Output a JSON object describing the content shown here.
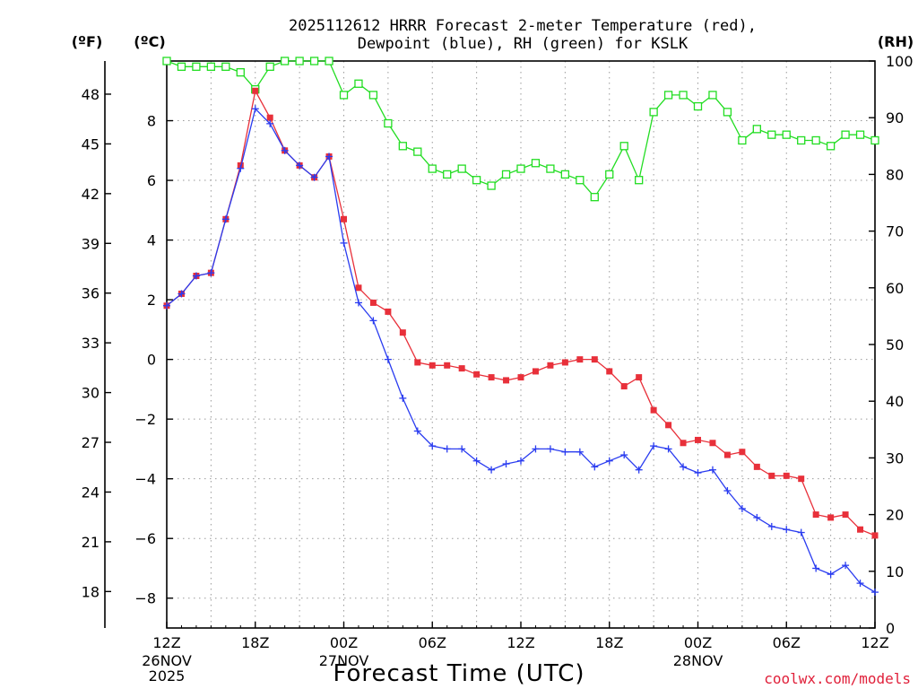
{
  "title_lines": [
    "2025112612 HRRR Forecast 2-meter Temperature (red),",
    "Dewpoint (blue), RH (green) for KSLK"
  ],
  "credit": "coolwx.com/models",
  "colors": {
    "temperature": "#e8303a",
    "dewpoint": "#2a3cf0",
    "rh": "#22dd22",
    "grid": "#9a9a9a",
    "text": "#000000",
    "credit": "#e0203a"
  },
  "chart_data": {
    "type": "line",
    "title": "2025112612 HRRR Forecast 2-meter Temperature (red), Dewpoint (blue), RH (green) for KSLK",
    "xlabel": "Forecast Time (UTC)",
    "x_hours": [
      0,
      1,
      2,
      3,
      4,
      5,
      6,
      7,
      8,
      9,
      10,
      11,
      12,
      13,
      14,
      15,
      16,
      17,
      18,
      19,
      20,
      21,
      22,
      23,
      24,
      25,
      26,
      27,
      28,
      29,
      30,
      31,
      32,
      33,
      34,
      35,
      36,
      37,
      38,
      39,
      40,
      41,
      42,
      43,
      44,
      45,
      46,
      47,
      48
    ],
    "xlim": [
      0,
      48
    ],
    "x_ticks": [
      {
        "hour": 0,
        "label": "12Z",
        "sub": [
          "26NOV",
          "2025"
        ]
      },
      {
        "hour": 6,
        "label": "18Z",
        "sub": []
      },
      {
        "hour": 12,
        "label": "00Z",
        "sub": [
          "27NOV"
        ]
      },
      {
        "hour": 18,
        "label": "06Z",
        "sub": []
      },
      {
        "hour": 24,
        "label": "12Z",
        "sub": []
      },
      {
        "hour": 30,
        "label": "18Z",
        "sub": []
      },
      {
        "hour": 36,
        "label": "00Z",
        "sub": [
          "28NOV"
        ]
      },
      {
        "hour": 42,
        "label": "06Z",
        "sub": []
      },
      {
        "hour": 48,
        "label": "12Z",
        "sub": []
      }
    ],
    "y_left_celsius": {
      "label": "(ºC)",
      "lim": [
        -9,
        10
      ],
      "ticks": [
        8,
        6,
        4,
        2,
        0,
        -2,
        -4,
        -6,
        -8
      ]
    },
    "y_left_fahrenheit": {
      "label": "(ºF)",
      "ticks": [
        48,
        45,
        42,
        39,
        36,
        33,
        30,
        27,
        24,
        21,
        18
      ]
    },
    "y_right_rh": {
      "label": "(RH)",
      "lim": [
        0,
        100
      ],
      "ticks": [
        100,
        90,
        80,
        70,
        60,
        50,
        40,
        30,
        20,
        10,
        0
      ]
    },
    "series": [
      {
        "name": "Temperature",
        "unit": "C",
        "axis": "celsius",
        "marker": "filled-square",
        "values": [
          1.8,
          2.2,
          2.8,
          2.9,
          4.7,
          6.5,
          9.0,
          8.1,
          7.0,
          6.5,
          6.1,
          6.8,
          4.7,
          2.4,
          1.9,
          1.6,
          0.9,
          -0.1,
          -0.2,
          -0.2,
          -0.3,
          -0.5,
          -0.6,
          -0.7,
          -0.6,
          -0.4,
          -0.2,
          -0.1,
          0.0,
          0.0,
          -0.4,
          -0.9,
          -0.6,
          -1.7,
          -2.2,
          -2.8,
          -2.7,
          -2.8,
          -3.2,
          -3.1,
          -3.6,
          -3.9,
          -3.9,
          -4.0,
          -5.2,
          -5.3,
          -5.2,
          -5.7,
          -5.9
        ]
      },
      {
        "name": "Dewpoint",
        "unit": "C",
        "axis": "celsius",
        "marker": "plus",
        "values": [
          1.8,
          2.2,
          2.8,
          2.9,
          4.7,
          6.4,
          8.4,
          7.9,
          7.0,
          6.5,
          6.1,
          6.8,
          3.9,
          1.9,
          1.3,
          0.0,
          -1.3,
          -2.4,
          -2.9,
          -3.0,
          -3.0,
          -3.4,
          -3.7,
          -3.5,
          -3.4,
          -3.0,
          -3.0,
          -3.1,
          -3.1,
          -3.6,
          -3.4,
          -3.2,
          -3.7,
          -2.9,
          -3.0,
          -3.6,
          -3.8,
          -3.7,
          -4.4,
          -5.0,
          -5.3,
          -5.6,
          -5.7,
          -5.8,
          -7.0,
          -7.2,
          -6.9,
          -7.5,
          -7.8
        ]
      },
      {
        "name": "RH",
        "unit": "%",
        "axis": "rh",
        "marker": "open-square",
        "values": [
          100,
          99,
          99,
          99,
          99,
          98,
          95,
          99,
          100,
          100,
          100,
          100,
          94,
          96,
          94,
          89,
          85,
          84,
          81,
          80,
          81,
          79,
          78,
          80,
          81,
          82,
          81,
          80,
          79,
          76,
          80,
          85,
          79,
          91,
          94,
          94,
          92,
          94,
          91,
          86,
          88,
          87,
          87,
          86,
          86,
          85,
          87,
          87,
          86
        ]
      }
    ]
  }
}
